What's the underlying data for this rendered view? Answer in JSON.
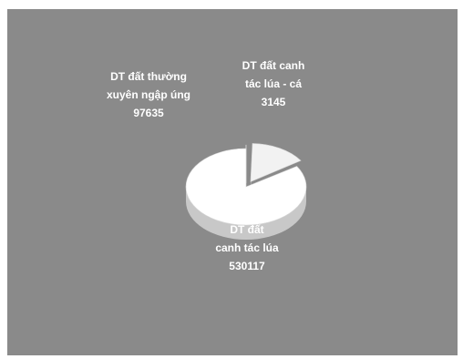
{
  "chart_data": {
    "type": "pie",
    "title": "",
    "slices": [
      {
        "label_lines": [
          "DT đất canh",
          "tác lúa - cá"
        ],
        "value": 3145,
        "value_text": "3145"
      },
      {
        "label_lines": [
          "DT đất thường",
          "xuyên ngập úng"
        ],
        "value": 97635,
        "value_text": "97635"
      },
      {
        "label_lines": [
          "DT đất",
          "canh tác lúa"
        ],
        "value": 530117,
        "value_text": "530117"
      }
    ],
    "colors": {
      "background": "#8a8a8a",
      "slice_top": "#ffffff",
      "small_slice_top": "#f2f2f2",
      "slice_side": "#c8c8c8",
      "label_text": "#ffffff"
    },
    "three_d": true,
    "legend": "none"
  }
}
